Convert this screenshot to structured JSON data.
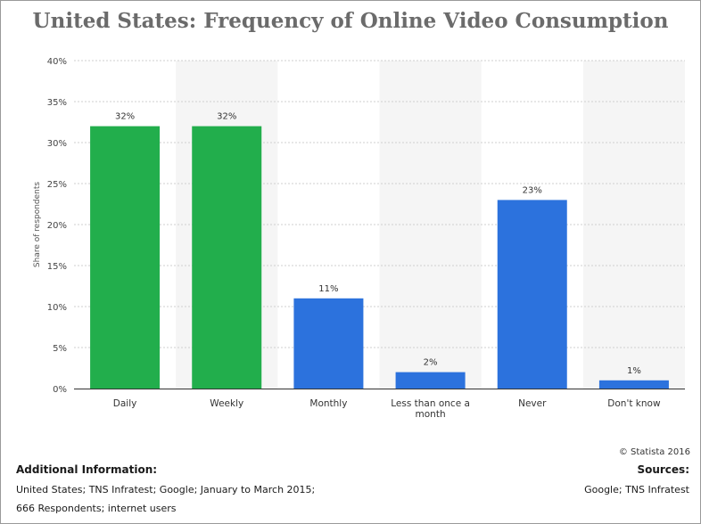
{
  "title": "United States: Frequency of Online Video Consumption",
  "copyright": "© Statista 2016",
  "additional_info": {
    "heading": "Additional Information:",
    "lines": [
      "United States; TNS Infratest; Google; January to March 2015;",
      "666 Respondents; internet users"
    ]
  },
  "sources": {
    "heading": "Sources:",
    "text": "Google; TNS Infratest"
  },
  "chart_data": {
    "type": "bar",
    "title": "United States: Frequency of Online Video Consumption",
    "ylabel": "Share of respondents",
    "xlabel": "",
    "categories": [
      "Daily",
      "Weekly",
      "Monthly",
      "Less than once a month",
      "Never",
      "Don't know"
    ],
    "category_label_lines": [
      [
        "Daily"
      ],
      [
        "Weekly"
      ],
      [
        "Monthly"
      ],
      [
        "Less than once a",
        "month"
      ],
      [
        "Never"
      ],
      [
        "Don't know"
      ]
    ],
    "values": [
      32,
      32,
      11,
      2,
      23,
      1
    ],
    "data_labels": [
      "32%",
      "32%",
      "11%",
      "2%",
      "23%",
      "1%"
    ],
    "bar_colors": [
      "#22ae4c",
      "#22ae4c",
      "#2c72dd",
      "#2c72dd",
      "#2c72dd",
      "#2c72dd"
    ],
    "ylim": [
      0,
      40
    ],
    "yticks": [
      0,
      5,
      10,
      15,
      20,
      25,
      30,
      35,
      40
    ],
    "ytick_labels": [
      "0%",
      "5%",
      "10%",
      "15%",
      "20%",
      "25%",
      "30%",
      "35%",
      "40%"
    ],
    "grid": true,
    "legend": "none"
  }
}
